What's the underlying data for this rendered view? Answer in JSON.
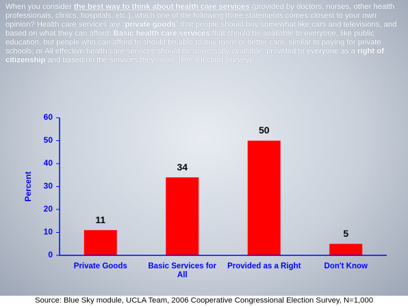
{
  "question": [
    {
      "text": "When you consider "
    },
    {
      "text": "the best way to think about health care services",
      "bold": true,
      "underline": true
    },
    {
      "text": " (provided by doctors, nurses, other health professionals, clinics, hospitals, etc.), which one of the following three statements comes closest to your own opinion?  Health care services are “"
    },
    {
      "text": "private goods",
      "bold": true
    },
    {
      "text": "” that people should buy somewhat like cars and televisions, and based on what they can afford; "
    },
    {
      "text": "Basic health care services",
      "bold": true
    },
    {
      "text": " that should be available to everyone, like public education, but people who can afford to should be able to buy more or better care, similar to paying for private schools;  or All effective health care services should be universally available, provided to everyone as a "
    },
    {
      "text": "right of citizenship",
      "bold": true
    },
    {
      "text": " and based on the services they need. (Pre-Election Survey)"
    }
  ],
  "chart_data": {
    "type": "bar",
    "categories": [
      "Private Goods",
      "Basic Services for All",
      "Provided as a Right",
      "Don't Know"
    ],
    "values": [
      11,
      34,
      50,
      5
    ],
    "color": "#ff0000",
    "ylabel": "Percent",
    "ylim": [
      0,
      60
    ],
    "yticks": [
      0,
      10,
      20,
      30,
      40,
      50,
      60
    ],
    "grid": false
  },
  "source": "Source: Blue Sky module, UCLA Team, 2006 Cooperative Congressional Election Survey, N=1,000"
}
